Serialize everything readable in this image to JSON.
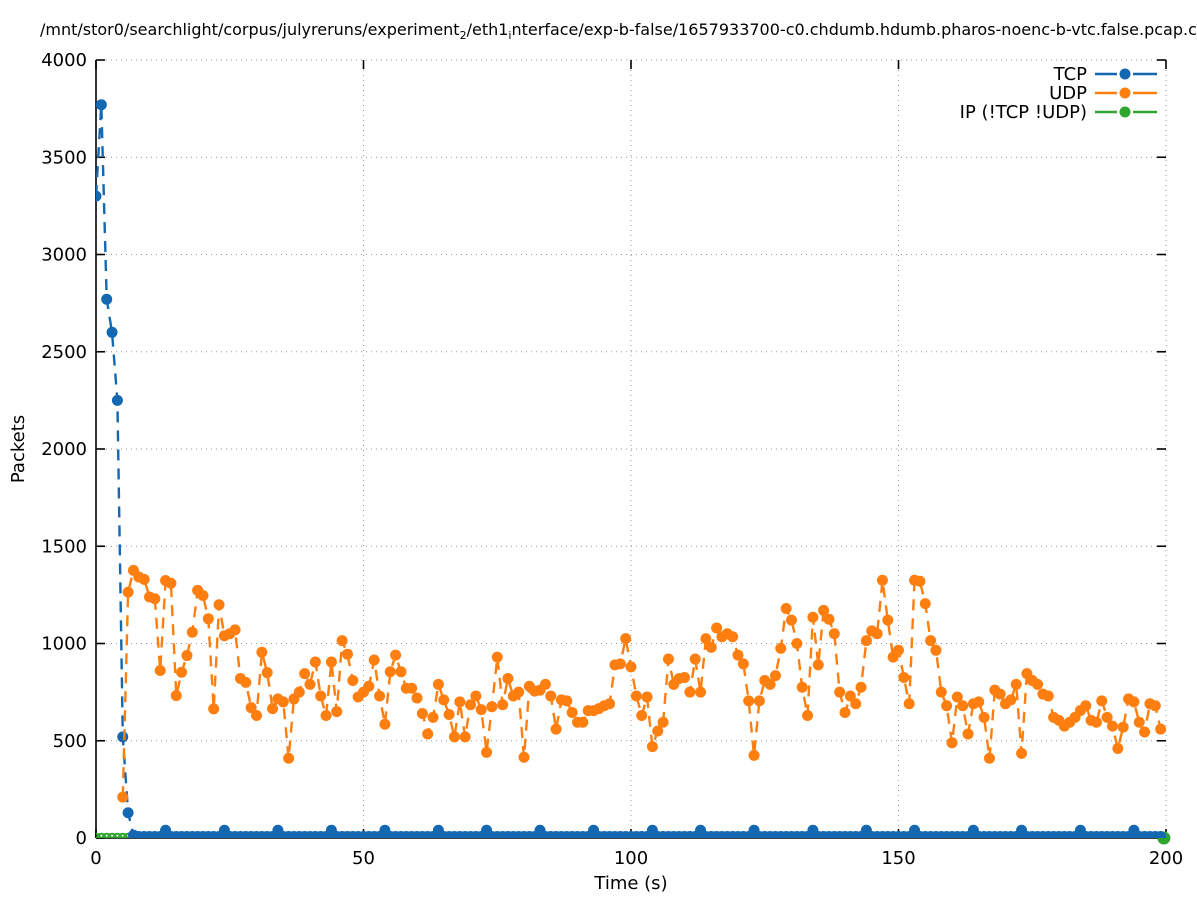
{
  "title": {
    "parts": [
      {
        "text": "/mnt/stor0/searchlight/corpus/julyreruns/experiment"
      },
      {
        "sub": "2"
      },
      {
        "text": "/eth1"
      },
      {
        "sub": "i"
      },
      {
        "text": "nterface/exp-b-false/1657933700-c0.chdumb.hdumb.pharos-noenc-b-vtc.false.pcap.c"
      }
    ]
  },
  "chart_data": {
    "type": "line",
    "xlabel": "Time (s)",
    "ylabel": "Packets",
    "xlim": [
      0,
      200
    ],
    "ylim": [
      0,
      4000
    ],
    "xticks": [
      0,
      50,
      100,
      150,
      200
    ],
    "yticks": [
      0,
      500,
      1000,
      1500,
      2000,
      2500,
      3000,
      3500,
      4000
    ],
    "grid": "dotted",
    "legend_position": "top-right-inside",
    "colors": {
      "tcp": "#1467b1",
      "udp": "#fe7f10",
      "ip_other": "#2fa42f",
      "grid": "#999999",
      "axis": "#000000"
    },
    "legend": [
      {
        "label": "TCP",
        "color_key": "tcp"
      },
      {
        "label": "UDP",
        "color_key": "udp"
      },
      {
        "label": "IP (!TCP  !UDP)",
        "color_key": "ip_other"
      }
    ],
    "series": [
      {
        "name": "TCP",
        "color_key": "tcp",
        "points": [
          [
            0,
            3300
          ],
          [
            1,
            3770
          ],
          [
            2,
            2770
          ],
          [
            3,
            2600
          ],
          [
            4,
            2250
          ],
          [
            5,
            520
          ],
          [
            6,
            130
          ],
          [
            7,
            15
          ]
        ],
        "baseline": {
          "from": 8,
          "to": 199,
          "value": 8
        },
        "bumps": {
          "times": [
            13,
            24,
            34,
            44,
            54,
            64,
            73,
            83,
            93,
            104,
            113,
            123,
            134,
            144,
            153,
            164,
            173,
            184,
            194
          ],
          "value": 40
        }
      },
      {
        "name": "UDP",
        "color_key": "udp",
        "points": [
          [
            5,
            210
          ],
          [
            6,
            1264
          ],
          [
            7,
            1376
          ],
          [
            8,
            1342
          ],
          [
            9,
            1330
          ],
          [
            10,
            1239
          ],
          [
            11,
            1230
          ],
          [
            12,
            861
          ],
          [
            13,
            1324
          ],
          [
            14,
            1310
          ],
          [
            15,
            732
          ],
          [
            16,
            852
          ],
          [
            17,
            938
          ],
          [
            18,
            1058
          ],
          [
            19,
            1273
          ],
          [
            20,
            1247
          ],
          [
            21,
            1127
          ],
          [
            22,
            664
          ],
          [
            23,
            1199
          ],
          [
            24,
            1040
          ],
          [
            25,
            1050
          ],
          [
            26,
            1070
          ],
          [
            27,
            820
          ],
          [
            28,
            800
          ],
          [
            29,
            670
          ],
          [
            30,
            630
          ],
          [
            31,
            955
          ],
          [
            32,
            850
          ],
          [
            33,
            665
          ],
          [
            34,
            715
          ],
          [
            35,
            700
          ],
          [
            36,
            410
          ],
          [
            37,
            715
          ],
          [
            38,
            750
          ],
          [
            39,
            845
          ],
          [
            40,
            790
          ],
          [
            41,
            905
          ],
          [
            42,
            730
          ],
          [
            43,
            630
          ],
          [
            44,
            905
          ],
          [
            45,
            650
          ],
          [
            46,
            1015
          ],
          [
            47,
            945
          ],
          [
            48,
            810
          ],
          [
            49,
            725
          ],
          [
            50,
            750
          ],
          [
            51,
            780
          ],
          [
            52,
            915
          ],
          [
            53,
            730
          ],
          [
            54,
            585
          ],
          [
            55,
            855
          ],
          [
            56,
            940
          ],
          [
            57,
            855
          ],
          [
            58,
            770
          ],
          [
            59,
            770
          ],
          [
            60,
            720
          ],
          [
            61,
            640
          ],
          [
            62,
            535
          ],
          [
            63,
            620
          ],
          [
            64,
            790
          ],
          [
            65,
            710
          ],
          [
            66,
            635
          ],
          [
            67,
            520
          ],
          [
            68,
            700
          ],
          [
            69,
            520
          ],
          [
            70,
            685
          ],
          [
            71,
            730
          ],
          [
            72,
            660
          ],
          [
            73,
            440
          ],
          [
            74,
            675
          ],
          [
            75,
            930
          ],
          [
            76,
            685
          ],
          [
            77,
            820
          ],
          [
            78,
            730
          ],
          [
            79,
            750
          ],
          [
            80,
            415
          ],
          [
            81,
            780
          ],
          [
            82,
            755
          ],
          [
            83,
            760
          ],
          [
            84,
            790
          ],
          [
            85,
            730
          ],
          [
            86,
            560
          ],
          [
            87,
            710
          ],
          [
            88,
            705
          ],
          [
            89,
            645
          ],
          [
            90,
            595
          ],
          [
            91,
            595
          ],
          [
            92,
            655
          ],
          [
            93,
            655
          ],
          [
            94,
            665
          ],
          [
            95,
            680
          ],
          [
            96,
            690
          ],
          [
            97,
            890
          ],
          [
            98,
            895
          ],
          [
            99,
            1025
          ],
          [
            100,
            880
          ],
          [
            101,
            730
          ],
          [
            102,
            630
          ],
          [
            103,
            725
          ],
          [
            104,
            470
          ],
          [
            105,
            550
          ],
          [
            106,
            595
          ],
          [
            107,
            920
          ],
          [
            108,
            790
          ],
          [
            109,
            820
          ],
          [
            110,
            825
          ],
          [
            111,
            750
          ],
          [
            112,
            920
          ],
          [
            113,
            750
          ],
          [
            114,
            1025
          ],
          [
            115,
            980
          ],
          [
            116,
            1080
          ],
          [
            117,
            1035
          ],
          [
            118,
            1050
          ],
          [
            119,
            1035
          ],
          [
            120,
            940
          ],
          [
            121,
            895
          ],
          [
            122,
            705
          ],
          [
            123,
            425
          ],
          [
            124,
            705
          ],
          [
            125,
            810
          ],
          [
            126,
            790
          ],
          [
            127,
            835
          ],
          [
            128,
            975
          ],
          [
            129,
            1180
          ],
          [
            130,
            1120
          ],
          [
            131,
            1000
          ],
          [
            132,
            775
          ],
          [
            133,
            630
          ],
          [
            134,
            1135
          ],
          [
            135,
            890
          ],
          [
            136,
            1170
          ],
          [
            137,
            1125
          ],
          [
            138,
            1050
          ],
          [
            139,
            750
          ],
          [
            140,
            645
          ],
          [
            141,
            730
          ],
          [
            142,
            690
          ],
          [
            143,
            775
          ],
          [
            144,
            1015
          ],
          [
            145,
            1065
          ],
          [
            146,
            1050
          ],
          [
            147,
            1325
          ],
          [
            148,
            1120
          ],
          [
            149,
            930
          ],
          [
            150,
            965
          ],
          [
            151,
            825
          ],
          [
            152,
            690
          ],
          [
            153,
            1325
          ],
          [
            154,
            1320
          ],
          [
            155,
            1205
          ],
          [
            156,
            1015
          ],
          [
            157,
            965
          ],
          [
            158,
            750
          ],
          [
            159,
            680
          ],
          [
            160,
            490
          ],
          [
            161,
            725
          ],
          [
            162,
            680
          ],
          [
            163,
            535
          ],
          [
            164,
            690
          ],
          [
            165,
            700
          ],
          [
            166,
            620
          ],
          [
            167,
            410
          ],
          [
            168,
            760
          ],
          [
            169,
            740
          ],
          [
            170,
            690
          ],
          [
            171,
            710
          ],
          [
            172,
            790
          ],
          [
            173,
            435
          ],
          [
            174,
            845
          ],
          [
            175,
            810
          ],
          [
            176,
            790
          ],
          [
            177,
            740
          ],
          [
            178,
            730
          ],
          [
            179,
            620
          ],
          [
            180,
            605
          ],
          [
            181,
            575
          ],
          [
            182,
            595
          ],
          [
            183,
            620
          ],
          [
            184,
            655
          ],
          [
            185,
            680
          ],
          [
            186,
            605
          ],
          [
            187,
            595
          ],
          [
            188,
            705
          ],
          [
            189,
            620
          ],
          [
            190,
            575
          ],
          [
            191,
            460
          ],
          [
            192,
            570
          ],
          [
            193,
            715
          ],
          [
            194,
            700
          ],
          [
            195,
            595
          ],
          [
            196,
            545
          ],
          [
            197,
            690
          ],
          [
            198,
            680
          ],
          [
            199,
            560
          ]
        ]
      },
      {
        "name": "IP (!TCP  !UDP)",
        "color_key": "ip_other",
        "constant": {
          "from": 0,
          "to": 199,
          "step": 1,
          "value": 0
        },
        "end_dot": [
          199.6,
          0
        ]
      }
    ]
  }
}
